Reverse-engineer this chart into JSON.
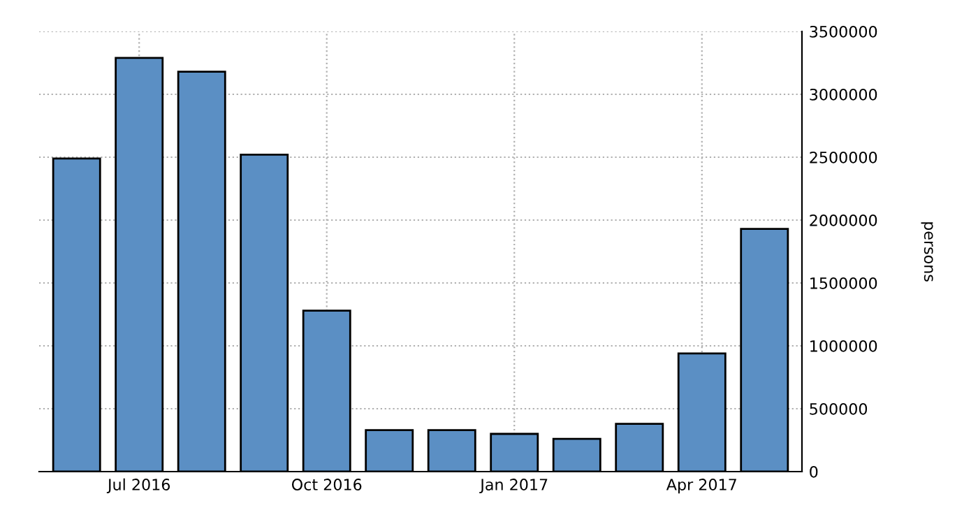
{
  "chart_data": {
    "type": "bar",
    "categories": [
      null,
      "Jul 2016",
      null,
      null,
      "Oct 2016",
      null,
      null,
      "Jan 2017",
      null,
      null,
      "Apr 2017",
      null
    ],
    "values": [
      2490000,
      3290000,
      3180000,
      2520000,
      1280000,
      330000,
      330000,
      300000,
      260000,
      380000,
      940000,
      1930000
    ],
    "color": "#5b8fc4",
    "ylabel": "persons",
    "ylim": [
      0,
      3500000
    ],
    "yticks": [
      0,
      500000,
      1000000,
      1500000,
      2000000,
      2500000,
      3000000,
      3500000
    ],
    "grid": true
  }
}
